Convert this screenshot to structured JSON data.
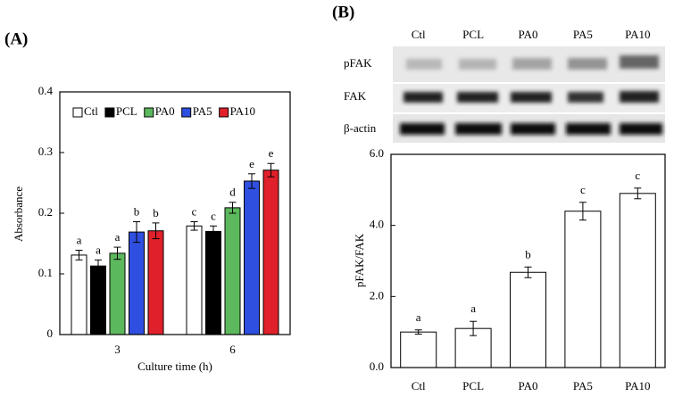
{
  "chart_data": [
    {
      "type": "bar",
      "panel": "(A)",
      "y_label": "Absorbance",
      "x_label": "Culture time (h)",
      "categories": [
        "3",
        "6"
      ],
      "series": [
        {
          "name": "Ctl",
          "color": "#ffffff",
          "values": [
            0.131,
            0.179
          ],
          "errors": [
            0.008,
            0.007
          ],
          "letters": [
            "a",
            "c"
          ]
        },
        {
          "name": "PCL",
          "color": "#000000",
          "values": [
            0.113,
            0.17
          ],
          "errors": [
            0.01,
            0.009
          ],
          "letters": [
            "a",
            "c"
          ]
        },
        {
          "name": "PA0",
          "color": "#5cb85c",
          "values": [
            0.134,
            0.209
          ],
          "errors": [
            0.01,
            0.009
          ],
          "letters": [
            "a",
            "d"
          ]
        },
        {
          "name": "PA5",
          "color": "#2f4fe0",
          "values": [
            0.169,
            0.253
          ],
          "errors": [
            0.017,
            0.012
          ],
          "letters": [
            "b",
            "e"
          ]
        },
        {
          "name": "PA10",
          "color": "#e0202a",
          "values": [
            0.171,
            0.271
          ],
          "errors": [
            0.013,
            0.011
          ],
          "letters": [
            "b",
            "e"
          ]
        }
      ],
      "ylim": [
        0,
        0.4
      ],
      "yticks": [
        0,
        0.1,
        0.2,
        0.3,
        0.4
      ],
      "legend": "top-left"
    },
    {
      "type": "bar",
      "panel": "(B)",
      "y_label": "pFAK/FAK",
      "blot_rows": [
        "pFAK",
        "FAK",
        "β-actin"
      ],
      "categories": [
        "Ctl",
        "PCL",
        "PA0",
        "PA5",
        "PA10"
      ],
      "values": [
        1.0,
        1.1,
        2.68,
        4.4,
        4.9
      ],
      "errors": [
        0.06,
        0.2,
        0.15,
        0.25,
        0.15
      ],
      "letters": [
        "a",
        "a",
        "b",
        "c",
        "c"
      ],
      "color": "#ffffff",
      "ylim": [
        0,
        6
      ],
      "yticks": [
        {
          "value": 0,
          "label": "0.0"
        },
        {
          "value": 2,
          "label": "2.0"
        },
        {
          "value": 4,
          "label": "4.0"
        },
        {
          "value": 6,
          "label": "6.0"
        }
      ]
    }
  ]
}
